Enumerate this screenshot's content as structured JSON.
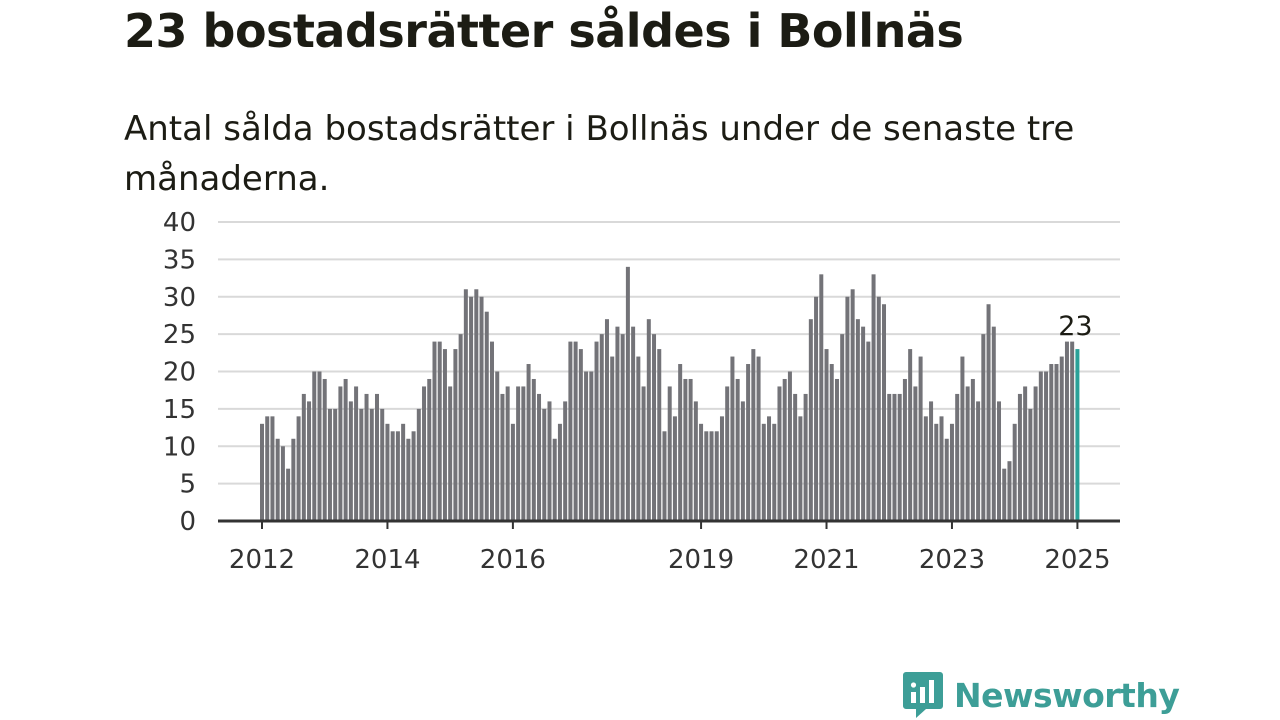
{
  "title": "23 bostadsrätter såldes i Bollnäs",
  "subtitle": "Antal sålda bostadsrätter i Bollnäs under de senaste tre månaderna.",
  "brand": {
    "name": "Newsworthy",
    "color": "#3d9e97"
  },
  "chart_data": {
    "type": "bar",
    "y_ticks": [
      0,
      5,
      10,
      15,
      20,
      25,
      30,
      35,
      40
    ],
    "ylim": [
      0,
      40
    ],
    "grid": true,
    "x_tick_labels": [
      {
        "label": "2012",
        "index": 0
      },
      {
        "label": "2014",
        "index": 24
      },
      {
        "label": "2016",
        "index": 48
      },
      {
        "label": "2019",
        "index": 84
      },
      {
        "label": "2021",
        "index": 108
      },
      {
        "label": "2023",
        "index": 132
      },
      {
        "label": "2025",
        "index": 156
      }
    ],
    "bar_color": "#737378",
    "highlight_color": "#2aa198",
    "highlight_label": "23",
    "values": [
      13,
      14,
      14,
      11,
      10,
      7,
      11,
      14,
      17,
      16,
      20,
      20,
      19,
      15,
      15,
      18,
      19,
      16,
      18,
      15,
      17,
      15,
      17,
      15,
      13,
      12,
      12,
      13,
      11,
      12,
      15,
      18,
      19,
      24,
      24,
      23,
      18,
      23,
      25,
      31,
      30,
      31,
      30,
      28,
      24,
      20,
      17,
      18,
      13,
      18,
      18,
      21,
      19,
      17,
      15,
      16,
      11,
      13,
      16,
      24,
      24,
      23,
      20,
      20,
      24,
      25,
      27,
      22,
      26,
      25,
      34,
      26,
      22,
      18,
      27,
      25,
      23,
      12,
      18,
      14,
      21,
      19,
      19,
      16,
      13,
      12,
      12,
      12,
      14,
      18,
      22,
      19,
      16,
      21,
      23,
      22,
      13,
      14,
      13,
      18,
      19,
      20,
      17,
      14,
      17,
      27,
      30,
      33,
      23,
      21,
      19,
      25,
      30,
      31,
      27,
      26,
      24,
      33,
      30,
      29,
      17,
      17,
      17,
      19,
      23,
      18,
      22,
      14,
      16,
      13,
      14,
      11,
      13,
      17,
      22,
      18,
      19,
      16,
      25,
      29,
      26,
      16,
      7,
      8,
      13,
      17,
      18,
      15,
      18,
      20,
      20,
      21,
      21,
      22,
      24,
      24,
      23
    ]
  }
}
